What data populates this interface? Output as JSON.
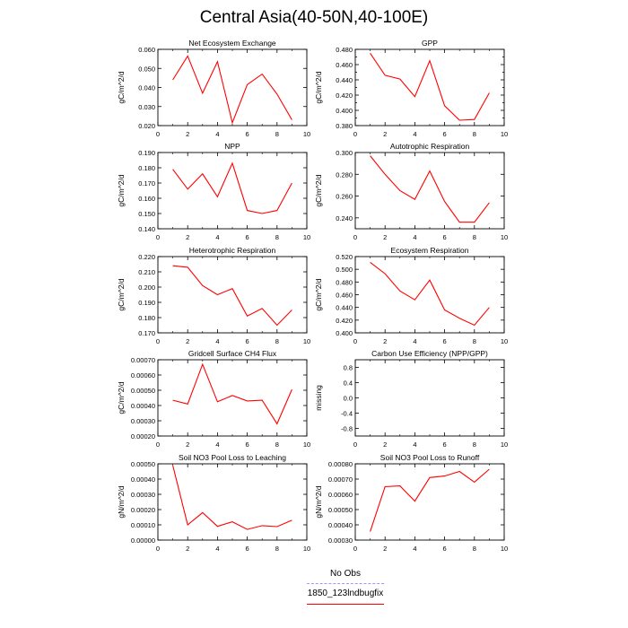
{
  "page": {
    "title": "Central Asia(40-50N,40-100E)"
  },
  "legend": {
    "items": [
      {
        "label": "No Obs",
        "color": "#9999ff",
        "style": "dashed"
      },
      {
        "label": "1850_123lndbugfix",
        "color": "#ff0000",
        "style": "solid"
      }
    ]
  },
  "chart_data": [
    {
      "type": "line",
      "title": "Net Ecosystem Exchange",
      "ylabel": "gC/m^2/d",
      "xlim": [
        0,
        10
      ],
      "ylim": [
        0.02,
        0.06
      ],
      "xticks": [
        0,
        2,
        4,
        6,
        8,
        10
      ],
      "yticks": [
        0.02,
        0.03,
        0.04,
        0.05,
        0.06
      ],
      "ydec": 3,
      "series": [
        {
          "color": "#ff0000",
          "x": [
            1,
            2,
            3,
            4,
            5,
            6,
            7,
            8,
            9
          ],
          "y": [
            0.044,
            0.0565,
            0.037,
            0.0535,
            0.0215,
            0.0415,
            0.047,
            0.0365,
            0.023
          ]
        }
      ]
    },
    {
      "type": "line",
      "title": "GPP",
      "ylabel": "gC/m^2/d",
      "xlim": [
        0,
        10
      ],
      "ylim": [
        0.38,
        0.48
      ],
      "xticks": [
        0,
        2,
        4,
        6,
        8,
        10
      ],
      "yticks": [
        0.38,
        0.39,
        0.4,
        0.41,
        0.42,
        0.43,
        0.44,
        0.45,
        0.46,
        0.47,
        0.48
      ],
      "ytick_labels_every": 2,
      "ydec": 3,
      "series": [
        {
          "color": "#ff0000",
          "x": [
            1,
            2,
            3,
            4,
            5,
            6,
            7,
            8,
            9
          ],
          "y": [
            0.475,
            0.446,
            0.441,
            0.418,
            0.465,
            0.406,
            0.387,
            0.388,
            0.423
          ]
        }
      ]
    },
    {
      "type": "line",
      "title": "NPP",
      "ylabel": "gC/m^2/d",
      "xlim": [
        0,
        10
      ],
      "ylim": [
        0.14,
        0.19
      ],
      "xticks": [
        0,
        2,
        4,
        6,
        8,
        10
      ],
      "yticks": [
        0.14,
        0.15,
        0.16,
        0.17,
        0.18,
        0.19
      ],
      "ydec": 3,
      "series": [
        {
          "color": "#ff0000",
          "x": [
            1,
            2,
            3,
            4,
            5,
            6,
            7,
            8,
            9
          ],
          "y": [
            0.179,
            0.166,
            0.176,
            0.161,
            0.183,
            0.152,
            0.15,
            0.152,
            0.17
          ]
        }
      ]
    },
    {
      "type": "line",
      "title": "Autotrophic Respiration",
      "ylabel": "gC/m^2/d",
      "xlim": [
        0,
        10
      ],
      "ylim": [
        0.23,
        0.3
      ],
      "xticks": [
        0,
        2,
        4,
        6,
        8,
        10
      ],
      "yticks": [
        0.24,
        0.26,
        0.28,
        0.3
      ],
      "ydec": 3,
      "series": [
        {
          "color": "#ff0000",
          "x": [
            1,
            2,
            3,
            4,
            5,
            6,
            7,
            8,
            9
          ],
          "y": [
            0.297,
            0.28,
            0.265,
            0.257,
            0.283,
            0.255,
            0.236,
            0.236,
            0.254
          ]
        }
      ]
    },
    {
      "type": "line",
      "title": "Heterotrophic Respiration",
      "ylabel": "gC/m^2/d",
      "xlim": [
        0,
        10
      ],
      "ylim": [
        0.17,
        0.22
      ],
      "xticks": [
        0,
        2,
        4,
        6,
        8,
        10
      ],
      "yticks": [
        0.17,
        0.18,
        0.19,
        0.2,
        0.21,
        0.22
      ],
      "ydec": 3,
      "series": [
        {
          "color": "#ff0000",
          "x": [
            1,
            2,
            3,
            4,
            5,
            6,
            7,
            8,
            9
          ],
          "y": [
            0.214,
            0.213,
            0.201,
            0.195,
            0.199,
            0.181,
            0.186,
            0.175,
            0.185
          ]
        }
      ]
    },
    {
      "type": "line",
      "title": "Ecosystem Respiration",
      "ylabel": "gC/m^2/d",
      "xlim": [
        0,
        10
      ],
      "ylim": [
        0.4,
        0.52
      ],
      "xticks": [
        0,
        2,
        4,
        6,
        8,
        10
      ],
      "yticks": [
        0.4,
        0.42,
        0.44,
        0.46,
        0.48,
        0.5,
        0.52
      ],
      "ydec": 3,
      "series": [
        {
          "color": "#ff0000",
          "x": [
            1,
            2,
            3,
            4,
            5,
            6,
            7,
            8,
            9
          ],
          "y": [
            0.511,
            0.493,
            0.466,
            0.452,
            0.483,
            0.436,
            0.423,
            0.412,
            0.44
          ]
        }
      ]
    },
    {
      "type": "line",
      "title": "Gridcell Surface CH4 Flux",
      "ylabel": "gC/m^2/d",
      "xlim": [
        0,
        10
      ],
      "ylim": [
        0.0002,
        0.0007
      ],
      "xticks": [
        0,
        2,
        4,
        6,
        8,
        10
      ],
      "yticks": [
        0.0002,
        0.0003,
        0.0004,
        0.0005,
        0.0006,
        0.0007
      ],
      "ydec": 5,
      "series": [
        {
          "color": "#ff0000",
          "x": [
            1,
            2,
            3,
            4,
            5,
            6,
            7,
            8,
            9
          ],
          "y": [
            0.000435,
            0.00041,
            0.00067,
            0.000425,
            0.000465,
            0.00043,
            0.000435,
            0.00028,
            0.000505
          ]
        }
      ]
    },
    {
      "type": "line",
      "title": "Carbon Use Efficiency (NPP/GPP)",
      "ylabel": "missing",
      "xlim": [
        0,
        10
      ],
      "ylim": [
        -1,
        1
      ],
      "xticks": [
        0,
        2,
        4,
        6,
        8,
        10
      ],
      "yticks": [
        -0.8,
        -0.4,
        0,
        0.4,
        0.8
      ],
      "ydec": 1,
      "series": []
    },
    {
      "type": "line",
      "title": "Soil NO3 Pool Loss to Leaching",
      "ylabel": "gN/m^2/d",
      "xlim": [
        0,
        10
      ],
      "ylim": [
        0,
        0.0005
      ],
      "xticks": [
        0,
        2,
        4,
        6,
        8,
        10
      ],
      "yticks": [
        0,
        0.0001,
        0.0002,
        0.0003,
        0.0004,
        0.0005
      ],
      "ydec": 5,
      "series": [
        {
          "color": "#ff0000",
          "x": [
            1,
            2,
            3,
            4,
            5,
            6,
            7,
            8,
            9
          ],
          "y": [
            0.00049,
            0.0001,
            0.00018,
            9e-05,
            0.00012,
            7e-05,
            9.5e-05,
            8.8e-05,
            0.00013
          ]
        }
      ]
    },
    {
      "type": "line",
      "title": "Soil NO3 Pool Loss to Runoff",
      "ylabel": "gN/m^2/d",
      "xlim": [
        0,
        10
      ],
      "ylim": [
        0.0003,
        0.0008
      ],
      "xticks": [
        0,
        2,
        4,
        6,
        8,
        10
      ],
      "yticks": [
        0.0003,
        0.0004,
        0.0005,
        0.0006,
        0.0007,
        0.0008
      ],
      "ydec": 5,
      "series": [
        {
          "color": "#ff0000",
          "x": [
            1,
            2,
            3,
            4,
            5,
            6,
            7,
            8,
            9
          ],
          "y": [
            0.000355,
            0.00065,
            0.000655,
            0.000555,
            0.00071,
            0.00072,
            0.00075,
            0.00068,
            0.000765
          ]
        }
      ]
    }
  ]
}
